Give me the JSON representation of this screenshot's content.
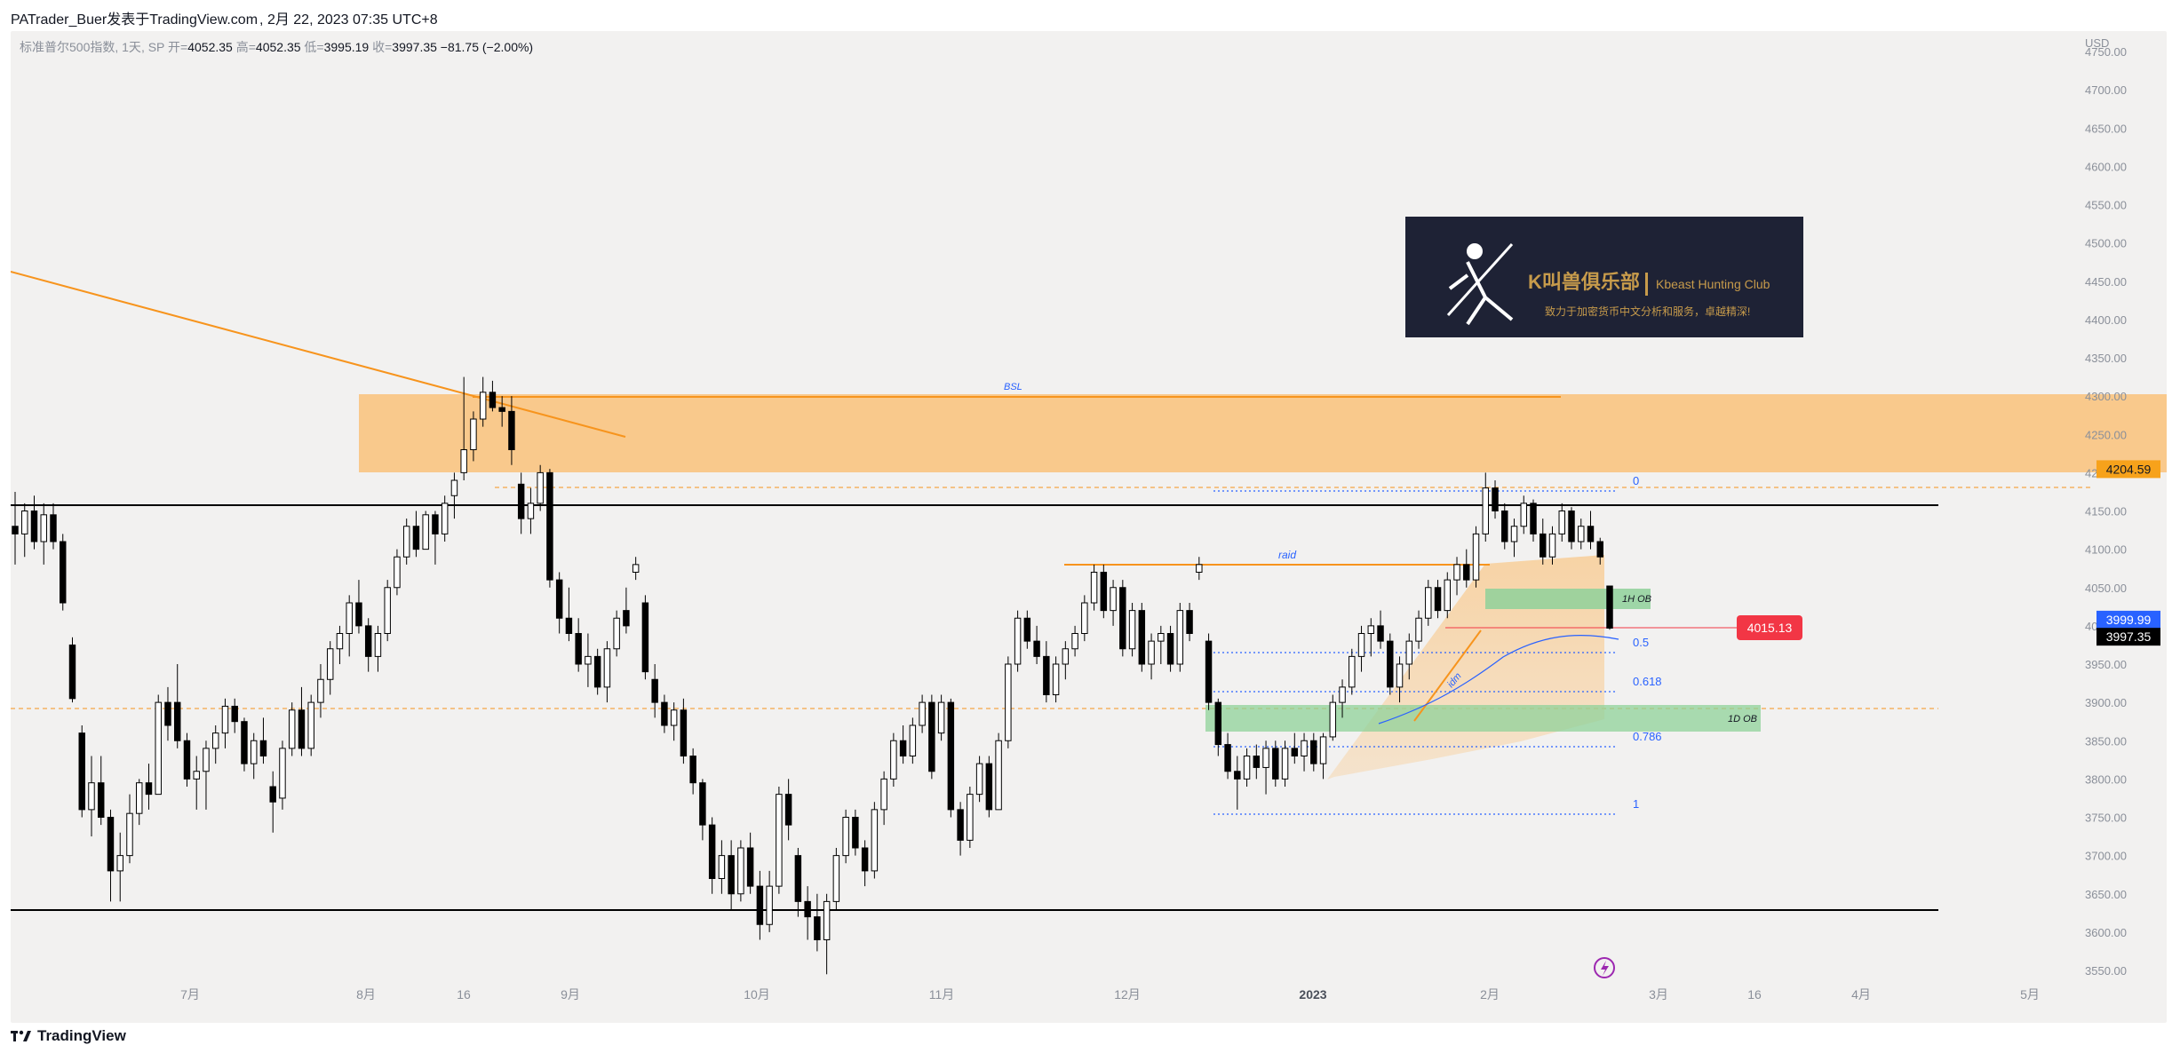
{
  "header": {
    "publisher": "PATrader_Buer发表于TradingView.com",
    "datetime": "2月 22, 2023 07:35 UTC+8"
  },
  "legend": {
    "symbol": "标准普尔500指数",
    "interval": "1天",
    "exchange": "SP",
    "open_label": "开=",
    "open": "4052.35",
    "high_label": "高=",
    "high": "4052.35",
    "low_label": "低=",
    "low": "3995.19",
    "close_label": "收=",
    "close": "3997.35",
    "change": "−81.75 (−2.00%)"
  },
  "price_axis": {
    "currency": "USD",
    "ticks": [
      "4750.00",
      "4700.00",
      "4650.00",
      "4600.00",
      "4550.00",
      "4500.00",
      "4450.00",
      "4400.00",
      "4350.00",
      "4300.00",
      "4250.00",
      "4200.00",
      "4150.00",
      "4100.00",
      "4050.00",
      "4000.00",
      "3950.00",
      "3900.00",
      "3850.00",
      "3800.00",
      "3750.00",
      "3700.00",
      "3650.00",
      "3600.00",
      "3550.00"
    ],
    "badges": [
      {
        "text": "4204.59",
        "bg": "#f7a21b",
        "fg": "#131722"
      },
      {
        "text": "3999.99",
        "bg": "#2962ff",
        "fg": "#ffffff"
      },
      {
        "text": "3997.35",
        "bg": "#000000",
        "fg": "#ffffff"
      }
    ]
  },
  "time_axis": {
    "labels": [
      "7月",
      "8月",
      "16",
      "9月",
      "10月",
      "11月",
      "12月",
      "2023",
      "2月",
      "3月",
      "16",
      "4月",
      "5月"
    ]
  },
  "banner": {
    "title": "K叫兽俱乐部",
    "subtitle": "Kbeast Hunting Club",
    "tagline": "致力于加密货币中文分析和服务，卓越精深!"
  },
  "annotations": {
    "bsl": "BSL",
    "raid": "raid",
    "idm": "idm",
    "ob_1h": "1H OB",
    "ob_1d": "1D OB",
    "fib_0": "0",
    "fib_05": "0.5",
    "fib_0618": "0.618",
    "fib_0786": "0.786",
    "fib_1": "1",
    "target_price": "4015.13"
  },
  "footer": {
    "brand": "TradingView"
  },
  "colors": {
    "bull": "#ffffff",
    "bear": "#000000",
    "orange": "#f7941d",
    "zone_orange": "#f9c98c",
    "zone_green": "#8fd19a",
    "fib_blue": "#2962ff",
    "red_label": "#f23645"
  },
  "chart_data": {
    "type": "candlestick",
    "title": "",
    "xlabel": "",
    "ylabel": "USD",
    "ylim": [
      3525,
      4800
    ],
    "candles": [
      {
        "o": 4130,
        "h": 4175,
        "l": 4080,
        "c": 4120
      },
      {
        "o": 4120,
        "h": 4160,
        "l": 4090,
        "c": 4150
      },
      {
        "o": 4150,
        "h": 4170,
        "l": 4100,
        "c": 4110
      },
      {
        "o": 4110,
        "h": 4160,
        "l": 4080,
        "c": 4145
      },
      {
        "o": 4145,
        "h": 4160,
        "l": 4100,
        "c": 4110
      },
      {
        "o": 4110,
        "h": 4120,
        "l": 4020,
        "c": 4030
      },
      {
        "o": 3975,
        "h": 3985,
        "l": 3900,
        "c": 3905
      },
      {
        "o": 3860,
        "h": 3870,
        "l": 3750,
        "c": 3760
      },
      {
        "o": 3760,
        "h": 3830,
        "l": 3725,
        "c": 3795
      },
      {
        "o": 3795,
        "h": 3830,
        "l": 3740,
        "c": 3750
      },
      {
        "o": 3750,
        "h": 3760,
        "l": 3640,
        "c": 3680
      },
      {
        "o": 3680,
        "h": 3730,
        "l": 3640,
        "c": 3700
      },
      {
        "o": 3700,
        "h": 3780,
        "l": 3690,
        "c": 3755
      },
      {
        "o": 3755,
        "h": 3800,
        "l": 3740,
        "c": 3795
      },
      {
        "o": 3795,
        "h": 3820,
        "l": 3760,
        "c": 3780
      },
      {
        "o": 3780,
        "h": 3910,
        "l": 3780,
        "c": 3900
      },
      {
        "o": 3900,
        "h": 3920,
        "l": 3850,
        "c": 3870
      },
      {
        "o": 3900,
        "h": 3950,
        "l": 3840,
        "c": 3850
      },
      {
        "o": 3850,
        "h": 3860,
        "l": 3790,
        "c": 3800
      },
      {
        "o": 3800,
        "h": 3830,
        "l": 3760,
        "c": 3810
      },
      {
        "o": 3810,
        "h": 3850,
        "l": 3760,
        "c": 3840
      },
      {
        "o": 3840,
        "h": 3870,
        "l": 3820,
        "c": 3860
      },
      {
        "o": 3860,
        "h": 3905,
        "l": 3840,
        "c": 3895
      },
      {
        "o": 3895,
        "h": 3905,
        "l": 3860,
        "c": 3875
      },
      {
        "o": 3875,
        "h": 3880,
        "l": 3810,
        "c": 3820
      },
      {
        "o": 3820,
        "h": 3860,
        "l": 3800,
        "c": 3850
      },
      {
        "o": 3850,
        "h": 3880,
        "l": 3820,
        "c": 3830
      },
      {
        "o": 3790,
        "h": 3810,
        "l": 3730,
        "c": 3770
      },
      {
        "o": 3775,
        "h": 3850,
        "l": 3760,
        "c": 3840
      },
      {
        "o": 3840,
        "h": 3900,
        "l": 3830,
        "c": 3890
      },
      {
        "o": 3890,
        "h": 3920,
        "l": 3830,
        "c": 3840
      },
      {
        "o": 3840,
        "h": 3910,
        "l": 3830,
        "c": 3900
      },
      {
        "o": 3900,
        "h": 3950,
        "l": 3880,
        "c": 3930
      },
      {
        "o": 3930,
        "h": 3980,
        "l": 3910,
        "c": 3970
      },
      {
        "o": 3970,
        "h": 4000,
        "l": 3950,
        "c": 3990
      },
      {
        "o": 3990,
        "h": 4040,
        "l": 3960,
        "c": 4030
      },
      {
        "o": 4030,
        "h": 4060,
        "l": 3990,
        "c": 4000
      },
      {
        "o": 4000,
        "h": 4010,
        "l": 3940,
        "c": 3960
      },
      {
        "o": 3960,
        "h": 4000,
        "l": 3940,
        "c": 3990
      },
      {
        "o": 3990,
        "h": 4060,
        "l": 3980,
        "c": 4050
      },
      {
        "o": 4050,
        "h": 4100,
        "l": 4040,
        "c": 4090
      },
      {
        "o": 4090,
        "h": 4140,
        "l": 4080,
        "c": 4130
      },
      {
        "o": 4130,
        "h": 4150,
        "l": 4090,
        "c": 4100
      },
      {
        "o": 4100,
        "h": 4150,
        "l": 4100,
        "c": 4145
      },
      {
        "o": 4145,
        "h": 4150,
        "l": 4080,
        "c": 4120
      },
      {
        "o": 4120,
        "h": 4170,
        "l": 4110,
        "c": 4160
      },
      {
        "o": 4170,
        "h": 4200,
        "l": 4140,
        "c": 4190
      },
      {
        "o": 4200,
        "h": 4325,
        "l": 4190,
        "c": 4230
      },
      {
        "o": 4230,
        "h": 4280,
        "l": 4215,
        "c": 4270
      },
      {
        "o": 4270,
        "h": 4325,
        "l": 4260,
        "c": 4305
      },
      {
        "o": 4305,
        "h": 4320,
        "l": 4280,
        "c": 4285
      },
      {
        "o": 4285,
        "h": 4300,
        "l": 4260,
        "c": 4280
      },
      {
        "o": 4280,
        "h": 4300,
        "l": 4210,
        "c": 4230
      },
      {
        "o": 4185,
        "h": 4200,
        "l": 4120,
        "c": 4140
      },
      {
        "o": 4140,
        "h": 4180,
        "l": 4120,
        "c": 4160
      },
      {
        "o": 4160,
        "h": 4210,
        "l": 4150,
        "c": 4200
      },
      {
        "o": 4200,
        "h": 4205,
        "l": 4050,
        "c": 4060
      },
      {
        "o": 4060,
        "h": 4070,
        "l": 3990,
        "c": 4010
      },
      {
        "o": 4010,
        "h": 4050,
        "l": 3980,
        "c": 3990
      },
      {
        "o": 3990,
        "h": 4010,
        "l": 3940,
        "c": 3950
      },
      {
        "o": 3950,
        "h": 3990,
        "l": 3920,
        "c": 3960
      },
      {
        "o": 3960,
        "h": 3970,
        "l": 3910,
        "c": 3920
      },
      {
        "o": 3920,
        "h": 3980,
        "l": 3900,
        "c": 3970
      },
      {
        "o": 3970,
        "h": 4020,
        "l": 3960,
        "c": 4010
      },
      {
        "o": 4020,
        "h": 4050,
        "l": 3990,
        "c": 4000
      },
      {
        "o": 4070,
        "h": 4090,
        "l": 4060,
        "c": 4080
      },
      {
        "o": 4030,
        "h": 4040,
        "l": 3930,
        "c": 3940
      },
      {
        "o": 3930,
        "h": 3950,
        "l": 3880,
        "c": 3900
      },
      {
        "o": 3900,
        "h": 3910,
        "l": 3860,
        "c": 3870
      },
      {
        "o": 3870,
        "h": 3900,
        "l": 3850,
        "c": 3890
      },
      {
        "o": 3890,
        "h": 3905,
        "l": 3820,
        "c": 3830
      },
      {
        "o": 3830,
        "h": 3840,
        "l": 3780,
        "c": 3795
      },
      {
        "o": 3795,
        "h": 3800,
        "l": 3720,
        "c": 3740
      },
      {
        "o": 3740,
        "h": 3750,
        "l": 3650,
        "c": 3670
      },
      {
        "o": 3670,
        "h": 3720,
        "l": 3650,
        "c": 3700
      },
      {
        "o": 3700,
        "h": 3720,
        "l": 3630,
        "c": 3650
      },
      {
        "o": 3650,
        "h": 3720,
        "l": 3640,
        "c": 3710
      },
      {
        "o": 3710,
        "h": 3730,
        "l": 3650,
        "c": 3660
      },
      {
        "o": 3660,
        "h": 3680,
        "l": 3590,
        "c": 3610
      },
      {
        "o": 3610,
        "h": 3680,
        "l": 3600,
        "c": 3660
      },
      {
        "o": 3660,
        "h": 3790,
        "l": 3650,
        "c": 3780
      },
      {
        "o": 3780,
        "h": 3800,
        "l": 3720,
        "c": 3740
      },
      {
        "o": 3700,
        "h": 3710,
        "l": 3620,
        "c": 3640
      },
      {
        "o": 3640,
        "h": 3660,
        "l": 3590,
        "c": 3620
      },
      {
        "o": 3620,
        "h": 3650,
        "l": 3575,
        "c": 3590
      },
      {
        "o": 3590,
        "h": 3650,
        "l": 3545,
        "c": 3640
      },
      {
        "o": 3640,
        "h": 3710,
        "l": 3630,
        "c": 3700
      },
      {
        "o": 3700,
        "h": 3760,
        "l": 3690,
        "c": 3750
      },
      {
        "o": 3750,
        "h": 3760,
        "l": 3700,
        "c": 3710
      },
      {
        "o": 3710,
        "h": 3720,
        "l": 3660,
        "c": 3680
      },
      {
        "o": 3680,
        "h": 3770,
        "l": 3670,
        "c": 3760
      },
      {
        "o": 3760,
        "h": 3810,
        "l": 3740,
        "c": 3800
      },
      {
        "o": 3800,
        "h": 3860,
        "l": 3790,
        "c": 3850
      },
      {
        "o": 3850,
        "h": 3870,
        "l": 3820,
        "c": 3830
      },
      {
        "o": 3830,
        "h": 3880,
        "l": 3820,
        "c": 3870
      },
      {
        "o": 3870,
        "h": 3910,
        "l": 3860,
        "c": 3900
      },
      {
        "o": 3900,
        "h": 3910,
        "l": 3800,
        "c": 3810
      },
      {
        "o": 3860,
        "h": 3910,
        "l": 3850,
        "c": 3900
      },
      {
        "o": 3900,
        "h": 3905,
        "l": 3750,
        "c": 3760
      },
      {
        "o": 3760,
        "h": 3770,
        "l": 3700,
        "c": 3720
      },
      {
        "o": 3720,
        "h": 3790,
        "l": 3710,
        "c": 3780
      },
      {
        "o": 3780,
        "h": 3830,
        "l": 3770,
        "c": 3820
      },
      {
        "o": 3820,
        "h": 3830,
        "l": 3750,
        "c": 3760
      },
      {
        "o": 3760,
        "h": 3860,
        "l": 3760,
        "c": 3850
      },
      {
        "o": 3850,
        "h": 3960,
        "l": 3840,
        "c": 3950
      },
      {
        "o": 3950,
        "h": 4020,
        "l": 3940,
        "c": 4010
      },
      {
        "o": 4010,
        "h": 4020,
        "l": 3970,
        "c": 3980
      },
      {
        "o": 3980,
        "h": 4000,
        "l": 3950,
        "c": 3960
      },
      {
        "o": 3960,
        "h": 3980,
        "l": 3900,
        "c": 3910
      },
      {
        "o": 3910,
        "h": 3960,
        "l": 3900,
        "c": 3950
      },
      {
        "o": 3950,
        "h": 3980,
        "l": 3930,
        "c": 3970
      },
      {
        "o": 3970,
        "h": 4000,
        "l": 3960,
        "c": 3990
      },
      {
        "o": 3990,
        "h": 4040,
        "l": 3980,
        "c": 4030
      },
      {
        "o": 4030,
        "h": 4080,
        "l": 4020,
        "c": 4070
      },
      {
        "o": 4070,
        "h": 4080,
        "l": 4010,
        "c": 4020
      },
      {
        "o": 4020,
        "h": 4060,
        "l": 4000,
        "c": 4050
      },
      {
        "o": 4050,
        "h": 4060,
        "l": 3960,
        "c": 3970
      },
      {
        "o": 3970,
        "h": 4030,
        "l": 3960,
        "c": 4020
      },
      {
        "o": 4020,
        "h": 4030,
        "l": 3940,
        "c": 3950
      },
      {
        "o": 3950,
        "h": 3990,
        "l": 3930,
        "c": 3980
      },
      {
        "o": 3980,
        "h": 4000,
        "l": 3950,
        "c": 3990
      },
      {
        "o": 3990,
        "h": 4000,
        "l": 3940,
        "c": 3950
      },
      {
        "o": 3950,
        "h": 4030,
        "l": 3940,
        "c": 4020
      },
      {
        "o": 4020,
        "h": 4030,
        "l": 3980,
        "c": 3990
      },
      {
        "o": 4070,
        "h": 4090,
        "l": 4060,
        "c": 4080
      },
      {
        "o": 3980,
        "h": 3990,
        "l": 3890,
        "c": 3900
      },
      {
        "o": 3900,
        "h": 3905,
        "l": 3830,
        "c": 3845
      },
      {
        "o": 3845,
        "h": 3860,
        "l": 3800,
        "c": 3810
      },
      {
        "o": 3810,
        "h": 3830,
        "l": 3760,
        "c": 3800
      },
      {
        "o": 3800,
        "h": 3840,
        "l": 3790,
        "c": 3830
      },
      {
        "o": 3830,
        "h": 3845,
        "l": 3800,
        "c": 3815
      },
      {
        "o": 3815,
        "h": 3850,
        "l": 3780,
        "c": 3840
      },
      {
        "o": 3840,
        "h": 3850,
        "l": 3790,
        "c": 3800
      },
      {
        "o": 3800,
        "h": 3850,
        "l": 3790,
        "c": 3840
      },
      {
        "o": 3840,
        "h": 3860,
        "l": 3820,
        "c": 3830
      },
      {
        "o": 3830,
        "h": 3860,
        "l": 3810,
        "c": 3850
      },
      {
        "o": 3850,
        "h": 3860,
        "l": 3810,
        "c": 3820
      },
      {
        "o": 3820,
        "h": 3860,
        "l": 3800,
        "c": 3855
      },
      {
        "o": 3855,
        "h": 3910,
        "l": 3850,
        "c": 3900
      },
      {
        "o": 3900,
        "h": 3930,
        "l": 3880,
        "c": 3920
      },
      {
        "o": 3920,
        "h": 3970,
        "l": 3910,
        "c": 3960
      },
      {
        "o": 3960,
        "h": 4000,
        "l": 3940,
        "c": 3990
      },
      {
        "o": 3990,
        "h": 4010,
        "l": 3960,
        "c": 4000
      },
      {
        "o": 4000,
        "h": 4020,
        "l": 3970,
        "c": 3980
      },
      {
        "o": 3980,
        "h": 3990,
        "l": 3910,
        "c": 3920
      },
      {
        "o": 3920,
        "h": 3960,
        "l": 3900,
        "c": 3950
      },
      {
        "o": 3950,
        "h": 3990,
        "l": 3930,
        "c": 3980
      },
      {
        "o": 3980,
        "h": 4020,
        "l": 3970,
        "c": 4010
      },
      {
        "o": 4010,
        "h": 4060,
        "l": 4000,
        "c": 4050
      },
      {
        "o": 4050,
        "h": 4060,
        "l": 4010,
        "c": 4020
      },
      {
        "o": 4020,
        "h": 4070,
        "l": 4010,
        "c": 4060
      },
      {
        "o": 4060,
        "h": 4090,
        "l": 4040,
        "c": 4080
      },
      {
        "o": 4080,
        "h": 4100,
        "l": 4050,
        "c": 4060
      },
      {
        "o": 4060,
        "h": 4130,
        "l": 4050,
        "c": 4120
      },
      {
        "o": 4120,
        "h": 4200,
        "l": 4110,
        "c": 4180
      },
      {
        "o": 4180,
        "h": 4190,
        "l": 4140,
        "c": 4150
      },
      {
        "o": 4150,
        "h": 4160,
        "l": 4100,
        "c": 4110
      },
      {
        "o": 4110,
        "h": 4140,
        "l": 4090,
        "c": 4130
      },
      {
        "o": 4130,
        "h": 4170,
        "l": 4120,
        "c": 4160
      },
      {
        "o": 4160,
        "h": 4165,
        "l": 4110,
        "c": 4120
      },
      {
        "o": 4120,
        "h": 4140,
        "l": 4080,
        "c": 4090
      },
      {
        "o": 4090,
        "h": 4130,
        "l": 4080,
        "c": 4120
      },
      {
        "o": 4120,
        "h": 4160,
        "l": 4110,
        "c": 4150
      },
      {
        "o": 4150,
        "h": 4155,
        "l": 4100,
        "c": 4110
      },
      {
        "o": 4110,
        "h": 4140,
        "l": 4100,
        "c": 4130
      },
      {
        "o": 4130,
        "h": 4150,
        "l": 4100,
        "c": 4110
      },
      {
        "o": 4110,
        "h": 4115,
        "l": 4080,
        "c": 4090
      },
      {
        "o": 4052,
        "h": 4052,
        "l": 3995,
        "c": 3997
      }
    ]
  }
}
